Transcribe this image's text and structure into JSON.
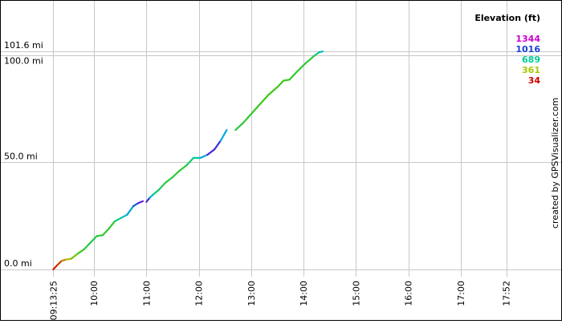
{
  "chart_data": {
    "type": "line",
    "title": "",
    "xlabel": "",
    "ylabel": "",
    "x_axis": {
      "unit": "time",
      "range_minutes": [
        553.4,
        1080
      ],
      "tick_labels": [
        {
          "label": "09:13:25",
          "minutes": 553.42
        },
        {
          "label": "10:00",
          "minutes": 600
        },
        {
          "label": "11:00",
          "minutes": 660
        },
        {
          "label": "12:00",
          "minutes": 720
        },
        {
          "label": "13:00",
          "minutes": 780
        },
        {
          "label": "14:00",
          "minutes": 840
        },
        {
          "label": "15:00",
          "minutes": 900
        },
        {
          "label": "16:00",
          "minutes": 960
        },
        {
          "label": "17:00",
          "minutes": 1020
        },
        {
          "label": "17:52",
          "minutes": 1072
        }
      ]
    },
    "y_axis": {
      "unit": "mi",
      "range": [
        0,
        101.6
      ],
      "tick_labels": [
        {
          "label": "0.0 mi",
          "value": 0
        },
        {
          "label": "50.0 mi",
          "value": 50
        },
        {
          "label": "100.0 mi",
          "value": 100
        },
        {
          "label": "101.6 mi",
          "value": 101.6
        }
      ]
    },
    "legend": {
      "title": "Elevation (ft)",
      "placement": "top-right",
      "entries": [
        {
          "label": "1344",
          "color": "#cc00cc"
        },
        {
          "label": "1016",
          "color": "#1a3fd9"
        },
        {
          "label": "689",
          "color": "#00cc99"
        },
        {
          "label": "361",
          "color": "#a8c800"
        },
        {
          "label": "34",
          "color": "#cc0000"
        }
      ]
    },
    "gridlines": true,
    "series": [
      {
        "segments": [
          [
            {
              "t": 553.4,
              "d": 0.0,
              "e": 60
            },
            {
              "t": 558.0,
              "d": 2.0,
              "e": 90
            },
            {
              "t": 563.0,
              "d": 4.0,
              "e": 120
            },
            {
              "t": 568.0,
              "d": 4.6,
              "e": 250
            },
            {
              "t": 574.0,
              "d": 5.0,
              "e": 380
            },
            {
              "t": 582.0,
              "d": 7.5,
              "e": 520
            },
            {
              "t": 589.0,
              "d": 9.5,
              "e": 560
            },
            {
              "t": 596.0,
              "d": 12.5,
              "e": 600
            },
            {
              "t": 603.0,
              "d": 15.5,
              "e": 580
            },
            {
              "t": 610.0,
              "d": 16.0,
              "e": 560
            },
            {
              "t": 617.0,
              "d": 19.0,
              "e": 520
            },
            {
              "t": 624.0,
              "d": 22.5,
              "e": 600
            },
            {
              "t": 631.0,
              "d": 24.0,
              "e": 700
            },
            {
              "t": 638.0,
              "d": 25.5,
              "e": 820
            },
            {
              "t": 645.0,
              "d": 29.5,
              "e": 900
            },
            {
              "t": 651.0,
              "d": 31.0,
              "e": 1050
            },
            {
              "t": 656.0,
              "d": 31.8,
              "e": 1250
            }
          ],
          [
            {
              "t": 660.0,
              "d": 31.5,
              "e": 1250
            },
            {
              "t": 664.0,
              "d": 33.5,
              "e": 900
            },
            {
              "t": 668.0,
              "d": 35.0,
              "e": 700
            },
            {
              "t": 674.0,
              "d": 37.0,
              "e": 620
            },
            {
              "t": 682.0,
              "d": 40.5,
              "e": 580
            },
            {
              "t": 690.0,
              "d": 43.0,
              "e": 560
            },
            {
              "t": 698.0,
              "d": 46.0,
              "e": 560
            },
            {
              "t": 706.0,
              "d": 48.5,
              "e": 560
            },
            {
              "t": 714.0,
              "d": 52.0,
              "e": 700
            },
            {
              "t": 722.0,
              "d": 52.0,
              "e": 720
            },
            {
              "t": 730.0,
              "d": 53.5,
              "e": 1000
            },
            {
              "t": 738.0,
              "d": 56.0,
              "e": 1250
            },
            {
              "t": 745.0,
              "d": 60.0,
              "e": 900
            },
            {
              "t": 752.0,
              "d": 65.0,
              "e": 800
            }
          ],
          [
            {
              "t": 762.0,
              "d": 65.0,
              "e": 600
            },
            {
              "t": 770.0,
              "d": 68.0,
              "e": 560
            },
            {
              "t": 780.0,
              "d": 72.5,
              "e": 560
            },
            {
              "t": 790.0,
              "d": 77.0,
              "e": 520
            },
            {
              "t": 800.0,
              "d": 81.5,
              "e": 520
            },
            {
              "t": 810.0,
              "d": 85.0,
              "e": 520
            },
            {
              "t": 817.0,
              "d": 88.0,
              "e": 520
            },
            {
              "t": 824.0,
              "d": 88.5,
              "e": 540
            },
            {
              "t": 832.0,
              "d": 92.0,
              "e": 560
            },
            {
              "t": 842.0,
              "d": 96.0,
              "e": 560
            },
            {
              "t": 852.0,
              "d": 99.5,
              "e": 560
            },
            {
              "t": 858.0,
              "d": 101.3,
              "e": 700
            },
            {
              "t": 862.0,
              "d": 101.6,
              "e": 850
            }
          ]
        ]
      }
    ]
  },
  "credit": "created by GPSVisualizer.com"
}
